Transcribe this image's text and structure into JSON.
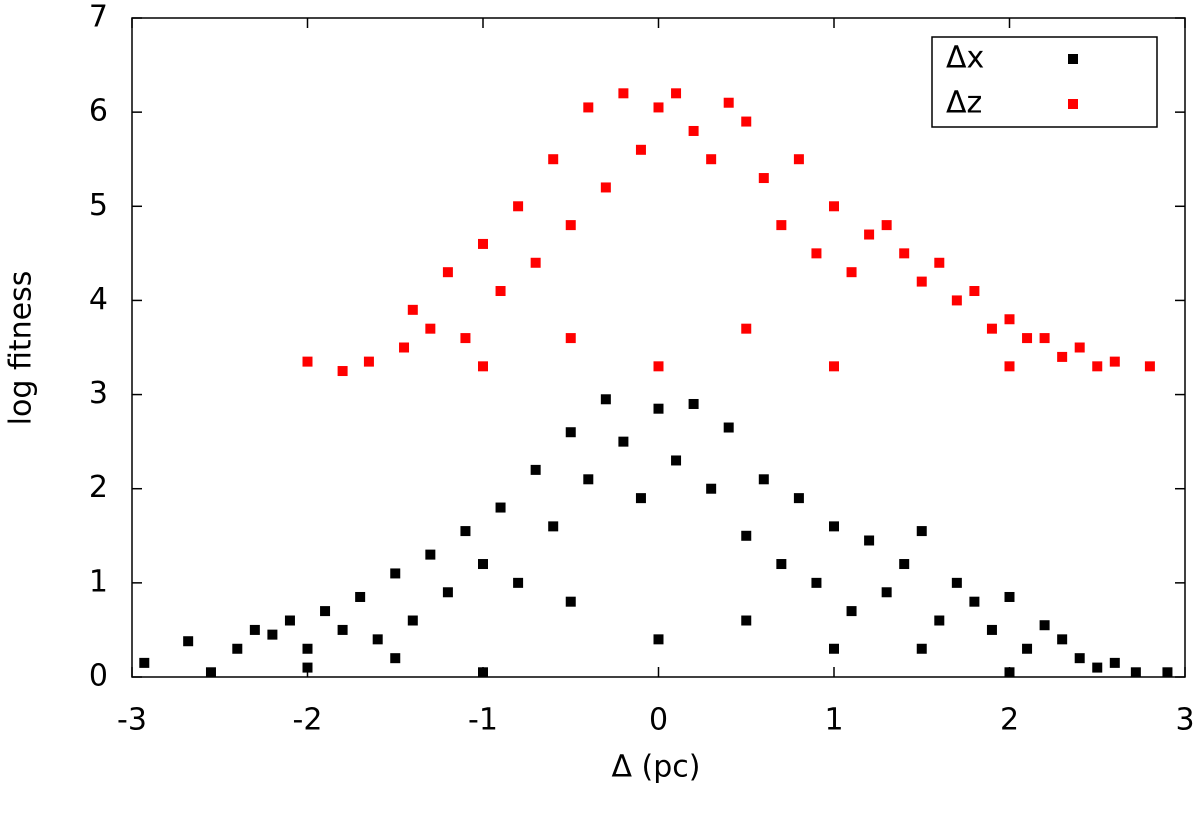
{
  "chart_data": {
    "type": "scatter",
    "xlabel": "Δ (pc)",
    "ylabel": "log fitness",
    "xlim": [
      -3,
      3
    ],
    "ylim": [
      0,
      7
    ],
    "xticks": [
      -3,
      -2,
      -1,
      0,
      1,
      2,
      3
    ],
    "yticks": [
      0,
      1,
      2,
      3,
      4,
      5,
      6,
      7
    ],
    "legend": "upper right",
    "series": [
      {
        "name": "Δx",
        "color": "#000000",
        "x": [
          -2.93,
          -2.68,
          -2.55,
          -2.4,
          -2.3,
          -2.2,
          -2.1,
          -2.0,
          -1.9,
          -1.8,
          -1.7,
          -1.6,
          -1.5,
          -1.4,
          -1.3,
          -1.2,
          -1.1,
          -1.0,
          -0.9,
          -0.8,
          -0.7,
          -0.6,
          -0.5,
          -0.4,
          -0.3,
          -0.2,
          -0.1,
          0.0,
          0.1,
          0.2,
          0.3,
          0.4,
          0.5,
          0.6,
          0.7,
          0.8,
          0.9,
          1.0,
          1.1,
          1.2,
          1.3,
          1.4,
          1.5,
          1.6,
          1.7,
          1.8,
          1.9,
          2.0,
          2.1,
          2.2,
          2.3,
          2.4,
          2.5,
          2.6,
          2.72,
          2.9,
          -1.5,
          -0.5,
          0.5,
          1.5,
          -1.0,
          0.0,
          1.0,
          -2.0,
          2.0
        ],
        "values": [
          0.15,
          0.38,
          0.05,
          0.3,
          0.5,
          0.45,
          0.6,
          0.3,
          0.7,
          0.5,
          0.85,
          0.4,
          1.1,
          0.6,
          1.3,
          0.9,
          1.55,
          1.2,
          1.8,
          1.0,
          2.2,
          1.6,
          2.6,
          2.1,
          2.95,
          2.5,
          1.9,
          2.85,
          2.3,
          2.9,
          2.0,
          2.65,
          1.5,
          2.1,
          1.2,
          1.9,
          1.0,
          1.6,
          0.7,
          1.45,
          0.9,
          1.2,
          1.55,
          0.6,
          1.0,
          0.8,
          0.5,
          0.85,
          0.3,
          0.55,
          0.4,
          0.2,
          0.1,
          0.15,
          0.05,
          0.05,
          0.2,
          0.8,
          0.6,
          0.3,
          0.05,
          0.4,
          0.3,
          0.1,
          0.05
        ]
      },
      {
        "name": "Δz",
        "color": "#ff0000",
        "x": [
          -2.0,
          -1.8,
          -1.65,
          -1.45,
          -1.4,
          -1.3,
          -1.2,
          -1.1,
          -1.0,
          -0.9,
          -0.8,
          -0.7,
          -0.6,
          -0.5,
          -0.4,
          -0.3,
          -0.2,
          -0.1,
          0.0,
          0.1,
          0.2,
          0.3,
          0.4,
          0.5,
          0.6,
          0.7,
          0.8,
          0.9,
          1.0,
          1.1,
          1.2,
          1.3,
          1.4,
          1.5,
          1.6,
          1.7,
          1.8,
          1.9,
          2.0,
          2.1,
          2.2,
          2.3,
          2.4,
          2.5,
          2.6,
          2.8,
          -1.0,
          0.0,
          1.0,
          2.0,
          -0.5,
          0.5
        ],
        "values": [
          3.35,
          3.25,
          3.35,
          3.5,
          3.9,
          3.7,
          4.3,
          3.6,
          4.6,
          4.1,
          5.0,
          4.4,
          5.5,
          4.8,
          6.05,
          5.2,
          6.2,
          5.6,
          6.05,
          6.2,
          5.8,
          5.5,
          6.1,
          5.9,
          5.3,
          4.8,
          5.5,
          4.5,
          5.0,
          4.3,
          4.7,
          4.8,
          4.5,
          4.2,
          4.4,
          4.0,
          4.1,
          3.7,
          3.8,
          3.6,
          3.6,
          3.4,
          3.5,
          3.3,
          3.35,
          3.3,
          3.3,
          3.3,
          3.3,
          3.3,
          3.6,
          3.7
        ]
      }
    ]
  }
}
